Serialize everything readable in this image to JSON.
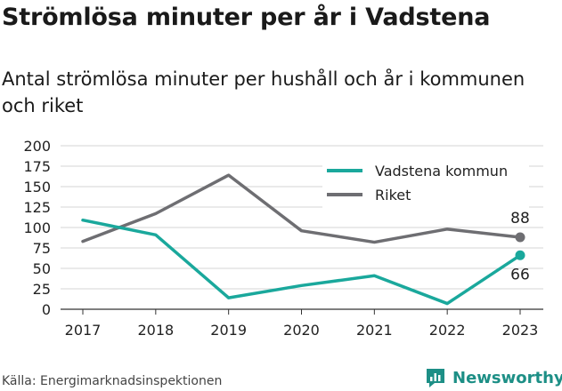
{
  "header": {
    "title": "Strömlösa minuter per år i Vadstena",
    "subtitle": "Antal strömlösa minuter per hushåll och år i kommunen och riket"
  },
  "footer": {
    "source": "Källa: Energimarknadsinspektionen",
    "brand": "Newsworthy",
    "brand_color": "#1d8f86",
    "brand_icon": "newsworthy-logo-icon"
  },
  "chart_data": {
    "type": "line",
    "x": [
      "2017",
      "2018",
      "2019",
      "2020",
      "2021",
      "2022",
      "2023"
    ],
    "ylim": [
      0,
      200
    ],
    "yticks": [
      0,
      25,
      50,
      75,
      100,
      125,
      150,
      175,
      200
    ],
    "grid": true,
    "legend_position": "top-right",
    "series": [
      {
        "name": "Vadstena kommun",
        "color": "#1aa89c",
        "values": [
          109,
          91,
          14,
          29,
          41,
          7,
          66
        ],
        "end_label": "66"
      },
      {
        "name": "Riket",
        "color": "#6e6e72",
        "values": [
          83,
          117,
          164,
          96,
          82,
          98,
          88
        ],
        "end_label": "88"
      }
    ]
  }
}
